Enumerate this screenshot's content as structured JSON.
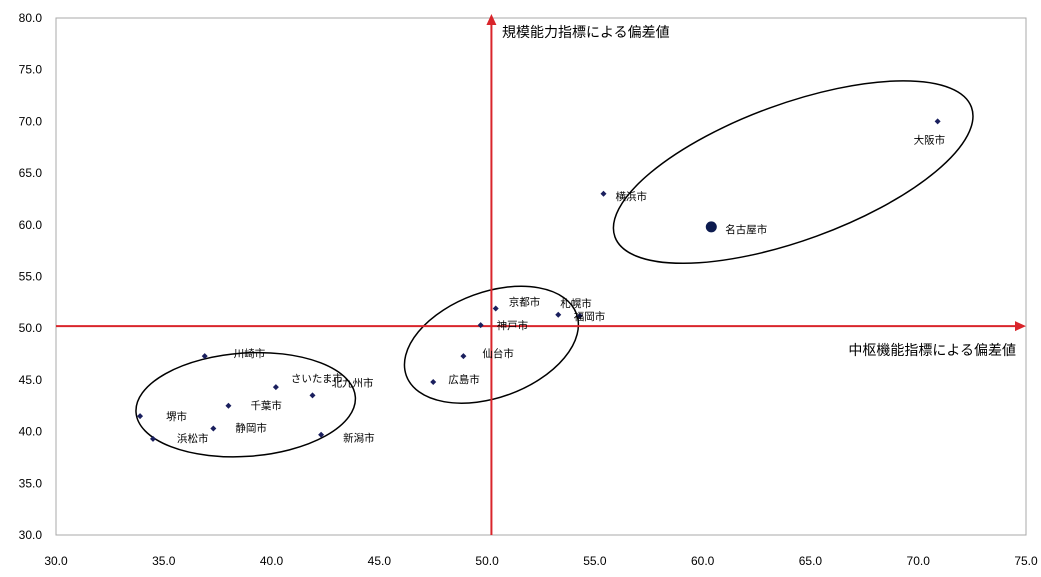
{
  "chart_data": {
    "type": "scatter",
    "title": "",
    "xlabel": "中枢機能指標による偏差値",
    "ylabel": "規模能力指標による偏差値",
    "xlim": [
      30,
      75
    ],
    "ylim": [
      30,
      80
    ],
    "x_ticks": [
      "30.0",
      "35.0",
      "40.0",
      "45.0",
      "50.0",
      "55.0",
      "60.0",
      "65.0",
      "70.0",
      "75.0"
    ],
    "y_ticks": [
      "30.0",
      "35.0",
      "40.0",
      "45.0",
      "50.0",
      "55.0",
      "60.0",
      "65.0",
      "70.0",
      "75.0",
      "80.0"
    ],
    "crosshair": {
      "x": 50.2,
      "y": 50.2
    },
    "grid": false,
    "legend": "none",
    "colors": {
      "points": "#1a1f5e",
      "highlight": "#0d1b4f",
      "axes": "#d9252b",
      "frame": "#a8a8a8",
      "ellipse": "#000000"
    },
    "points": [
      {
        "name": "大阪市",
        "x": 70.9,
        "y": 70.0,
        "highlight": false
      },
      {
        "name": "横浜市",
        "x": 55.4,
        "y": 63.0,
        "highlight": false
      },
      {
        "name": "名古屋市",
        "x": 60.4,
        "y": 59.8,
        "highlight": true
      },
      {
        "name": "京都市",
        "x": 50.4,
        "y": 51.9,
        "highlight": false
      },
      {
        "name": "札幌市",
        "x": 53.3,
        "y": 51.3,
        "highlight": false
      },
      {
        "name": "福岡市",
        "x": 54.3,
        "y": 51.2,
        "highlight": false
      },
      {
        "name": "神戸市",
        "x": 49.7,
        "y": 50.3,
        "highlight": false
      },
      {
        "name": "仙台市",
        "x": 48.9,
        "y": 47.3,
        "highlight": false
      },
      {
        "name": "広島市",
        "x": 47.5,
        "y": 44.8,
        "highlight": false
      },
      {
        "name": "川崎市",
        "x": 36.9,
        "y": 47.3,
        "highlight": false
      },
      {
        "name": "さいたま市",
        "x": 40.2,
        "y": 44.3,
        "highlight": false
      },
      {
        "name": "北九州市",
        "x": 41.9,
        "y": 43.5,
        "highlight": false
      },
      {
        "name": "千葉市",
        "x": 38.0,
        "y": 42.5,
        "highlight": false
      },
      {
        "name": "堺市",
        "x": 33.9,
        "y": 41.5,
        "highlight": false
      },
      {
        "name": "静岡市",
        "x": 37.3,
        "y": 40.3,
        "highlight": false
      },
      {
        "name": "浜松市",
        "x": 34.5,
        "y": 39.3,
        "highlight": false
      },
      {
        "name": "新潟市",
        "x": 42.3,
        "y": 39.7,
        "highlight": false
      }
    ]
  }
}
